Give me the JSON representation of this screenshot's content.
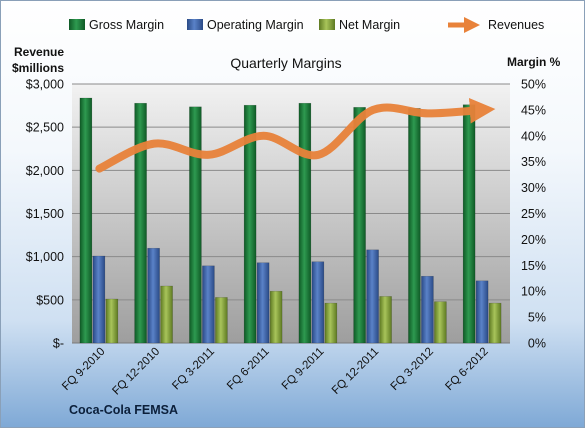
{
  "chart_data": {
    "type": "bar",
    "title": "Quarterly Margins",
    "company_label": "Coca-Cola FEMSA",
    "left_axis": {
      "label_line1": "Revenue",
      "label_line2": "$millions",
      "ylim": [
        0,
        3000
      ],
      "ticks": [
        0,
        500,
        1000,
        1500,
        2000,
        2500,
        3000
      ],
      "tick_labels": [
        "$-",
        "$500",
        "$1,000",
        "$1,500",
        "$2,000",
        "$2,500",
        "$3,000"
      ]
    },
    "right_axis": {
      "label": "Margin %",
      "ylim": [
        0,
        50
      ],
      "ticks": [
        0,
        5,
        10,
        15,
        20,
        25,
        30,
        35,
        40,
        45,
        50
      ],
      "tick_labels": [
        "0%",
        "5%",
        "10%",
        "15%",
        "20%",
        "25%",
        "30%",
        "35%",
        "40%",
        "45%",
        "50%"
      ]
    },
    "categories": [
      "FQ 9-2010",
      "FQ 12-2010",
      "FQ 3-2011",
      "FQ 6-2011",
      "FQ 9-2011",
      "FQ 12-2011",
      "FQ 3-2012",
      "FQ 6-2012"
    ],
    "series": [
      {
        "name": "Gross Margin",
        "type": "bar",
        "axis": "right",
        "color": "#1f7a3a",
        "values": [
          47.3,
          46.3,
          45.6,
          45.9,
          46.3,
          45.5,
          45.3,
          46.0
        ]
      },
      {
        "name": "Operating Margin",
        "type": "bar",
        "axis": "right",
        "color": "#3b62a8",
        "values": [
          16.8,
          18.3,
          14.9,
          15.5,
          15.7,
          18.0,
          12.9,
          12.0
        ]
      },
      {
        "name": "Net Margin",
        "type": "bar",
        "axis": "right",
        "color": "#8aa83a",
        "values": [
          8.5,
          11.0,
          8.8,
          10.0,
          7.7,
          9.0,
          8.0,
          7.7
        ]
      },
      {
        "name": "Revenues",
        "type": "line",
        "axis": "left",
        "color": "#e8823a",
        "values": [
          2020,
          2310,
          2180,
          2400,
          2180,
          2700,
          2660,
          2700
        ]
      }
    ],
    "grid": true,
    "legend_position": "top"
  }
}
